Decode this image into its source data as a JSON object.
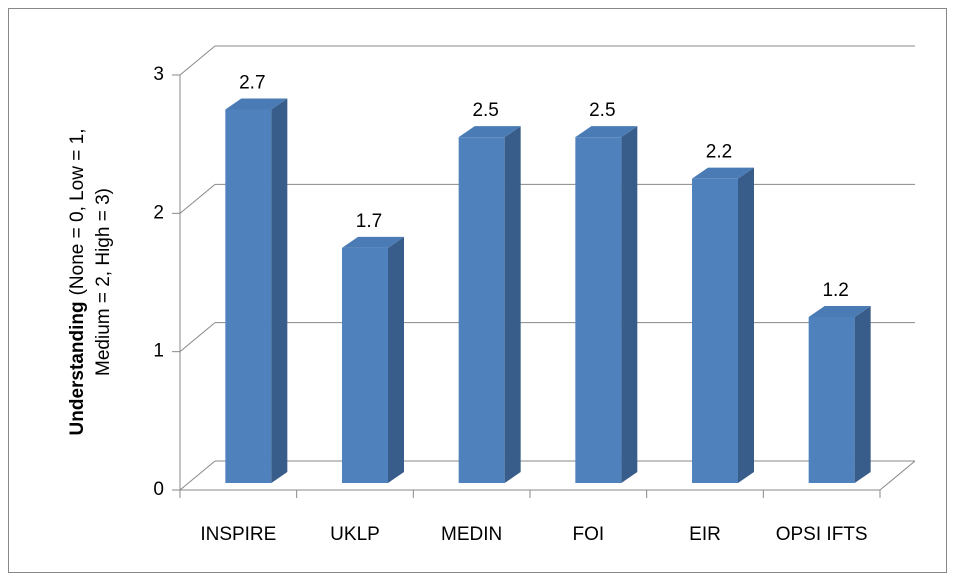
{
  "chart_data": {
    "type": "bar3d",
    "y_label": {
      "bold": "Understanding",
      "lines": [
        "(None = 0, Low = 1,",
        "Medium = 2, High = 3)"
      ]
    },
    "categories": [
      "INSPIRE",
      "UKLP",
      "MEDIN",
      "FOI",
      "EIR",
      "OPSI IFTS"
    ],
    "values": [
      2.7,
      1.7,
      2.5,
      2.5,
      2.2,
      1.2
    ],
    "color": "#4f81bd",
    "ylim": [
      0,
      3
    ],
    "yticks": [
      0,
      1,
      2,
      3
    ],
    "grid": true
  }
}
